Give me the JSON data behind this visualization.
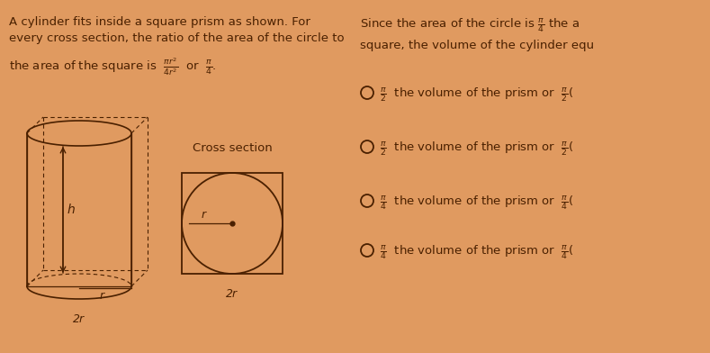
{
  "bg_color": "#e09a60",
  "text_color": "#4a2000",
  "left_text_line1": "A cylinder fits inside a square prism as shown. For",
  "left_text_line2": "every cross section, the ratio of the area of the circle to",
  "left_text_line3": "the area of the square is",
  "left_formula_frac": "$\\frac{\\pi r^2}{4r^2}$",
  "left_formula_or": "or",
  "left_formula_pi4": "$\\frac{\\pi}{4}$.",
  "right_text_line1": "Since the area of the circle is $\\frac{\\pi}{4}$ the a",
  "right_text_line2": "square, the volume of the cylinder equ",
  "cross_section_label": "Cross section",
  "cross_section_2r": "2r",
  "cylinder_h": "h",
  "cylinder_r": "r",
  "cylinder_2r": "2r",
  "cross_r": "r",
  "options": [
    "$\\frac{\\pi}{2}$  the volume of the prism or  $\\frac{\\pi}{2}$(",
    "$\\frac{\\pi}{2}$  the volume of the prism or  $\\frac{\\pi}{2}$(",
    "$\\frac{\\pi}{4}$  the volume of the prism or  $\\frac{\\pi}{4}$(",
    "$\\frac{\\pi}{4}$  the volume of the prism or  $\\frac{\\pi}{4}$("
  ],
  "figwidth": 7.89,
  "figheight": 3.92,
  "dpi": 100
}
